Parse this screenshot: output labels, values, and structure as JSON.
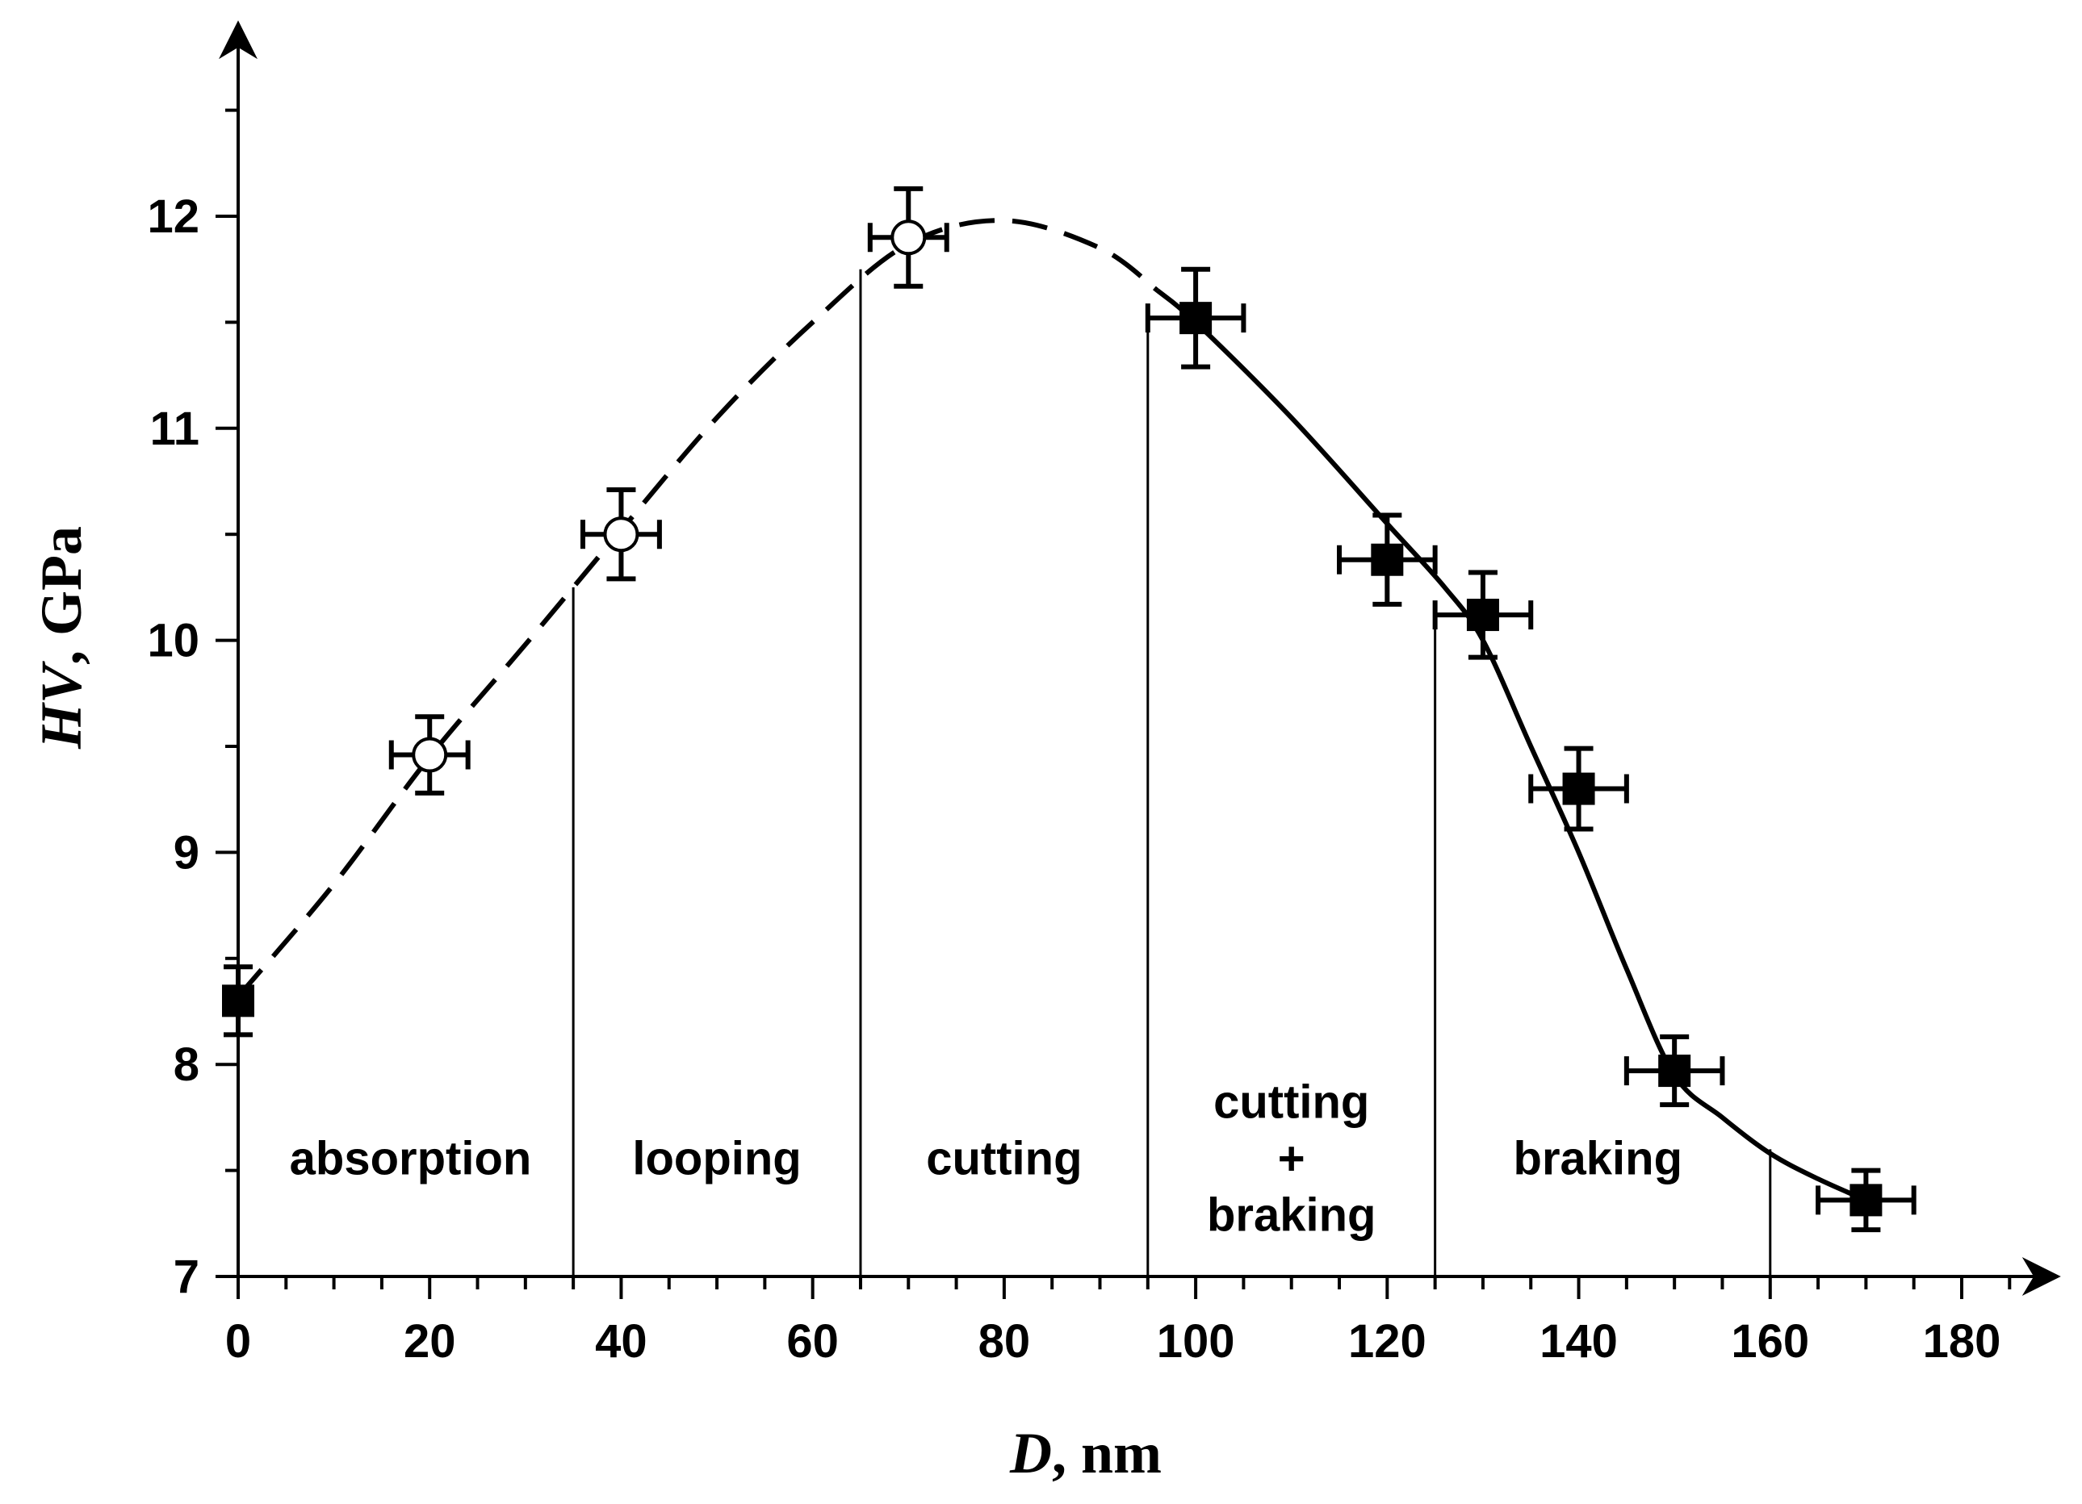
{
  "chart_data": {
    "type": "scatter",
    "title": "",
    "xlabel_var": "D",
    "xlabel_unit": ", nm",
    "ylabel_var": "HV",
    "ylabel_unit": ", GPa",
    "xlim": [
      0,
      190
    ],
    "ylim": [
      7,
      12.75
    ],
    "x_ticks": [
      0,
      20,
      40,
      60,
      80,
      100,
      120,
      140,
      160,
      180
    ],
    "x_tick_labels": [
      "0",
      "20",
      "40",
      "60",
      "80",
      "100",
      "120",
      "140",
      "160",
      "180"
    ],
    "y_ticks": [
      7,
      8,
      9,
      10,
      11,
      12
    ],
    "y_tick_labels": [
      "7",
      "8",
      "9",
      "10",
      "11",
      "12"
    ],
    "grid": false,
    "series": [
      {
        "name": "open circles",
        "marker": "circle-open",
        "points": [
          {
            "x": 20,
            "y": 9.46,
            "xerr": 4,
            "yerr": 0.18
          },
          {
            "x": 40,
            "y": 10.5,
            "xerr": 4,
            "yerr": 0.21
          },
          {
            "x": 70,
            "y": 11.9,
            "xerr": 4,
            "yerr": 0.23
          }
        ]
      },
      {
        "name": "filled squares",
        "marker": "square-filled",
        "points": [
          {
            "x": 0,
            "y": 8.3,
            "xerr": 0,
            "yerr": 0.16
          },
          {
            "x": 100,
            "y": 11.52,
            "xerr": 5,
            "yerr": 0.23
          },
          {
            "x": 120,
            "y": 10.38,
            "xerr": 5,
            "yerr": 0.21
          },
          {
            "x": 130,
            "y": 10.12,
            "xerr": 5,
            "yerr": 0.2
          },
          {
            "x": 140,
            "y": 9.3,
            "xerr": 5,
            "yerr": 0.19
          },
          {
            "x": 150,
            "y": 7.97,
            "xerr": 5,
            "yerr": 0.16
          },
          {
            "x": 170,
            "y": 7.36,
            "xerr": 5,
            "yerr": 0.14
          }
        ]
      }
    ],
    "fit_curve": {
      "dashed": [
        [
          0,
          8.32
        ],
        [
          10,
          8.85
        ],
        [
          20,
          9.45
        ],
        [
          30,
          9.98
        ],
        [
          40,
          10.52
        ],
        [
          50,
          11.05
        ],
        [
          60,
          11.5
        ],
        [
          70,
          11.87
        ],
        [
          80,
          11.98
        ],
        [
          90,
          11.85
        ],
        [
          96,
          11.65
        ]
      ],
      "solid": [
        [
          96,
          11.65
        ],
        [
          100,
          11.5
        ],
        [
          110,
          11.05
        ],
        [
          120,
          10.55
        ],
        [
          126,
          10.25
        ],
        [
          130,
          10.0
        ],
        [
          135,
          9.5
        ],
        [
          140,
          9.0
        ],
        [
          145,
          8.45
        ],
        [
          150,
          7.95
        ],
        [
          155,
          7.75
        ],
        [
          160,
          7.58
        ],
        [
          165,
          7.46
        ],
        [
          170,
          7.36
        ]
      ]
    },
    "region_boundaries": [
      {
        "x": 35,
        "y_top": 10.25
      },
      {
        "x": 65,
        "y_top": 11.75
      },
      {
        "x": 95,
        "y_top": 11.55
      },
      {
        "x": 125,
        "y_top": 10.15
      },
      {
        "x": 160,
        "y_top": 7.6
      }
    ],
    "regions": [
      {
        "lines": [
          "absorption"
        ],
        "x": 18,
        "y": 7.55
      },
      {
        "lines": [
          "looping"
        ],
        "x": 50,
        "y": 7.55
      },
      {
        "lines": [
          "cutting"
        ],
        "x": 80,
        "y": 7.55
      },
      {
        "lines": [
          "cutting",
          "+",
          "braking"
        ],
        "x": 110,
        "y": 7.55
      },
      {
        "lines": [
          "braking"
        ],
        "x": 142,
        "y": 7.55
      }
    ]
  }
}
